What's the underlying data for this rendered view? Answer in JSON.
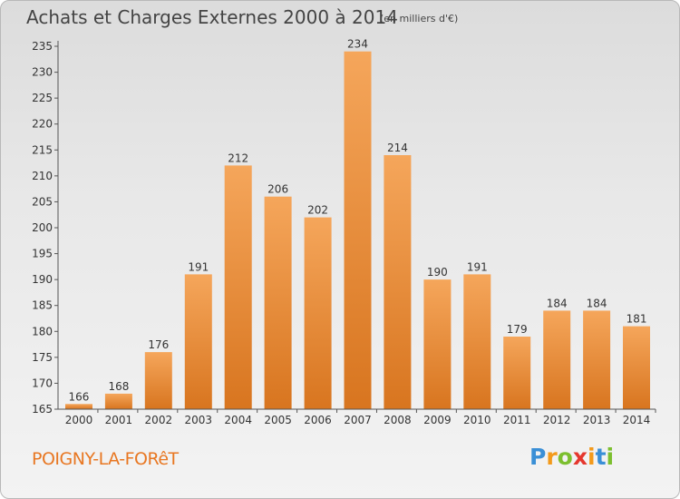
{
  "header": {
    "title": "Achats et Charges Externes 2000 à 2014",
    "unit": "(en milliers d'€)"
  },
  "footer": {
    "location": "POIGNY-LA-FORêT",
    "logo_text": "Proxiti",
    "logo_letters": [
      "P",
      "r",
      "o",
      "x",
      "i",
      "t",
      "i"
    ],
    "logo_colors": [
      "#3a8fd6",
      "#f39a1b",
      "#7cbf2f",
      "#e5372e",
      "#f39a1b",
      "#3a8fd6",
      "#7cbf2f"
    ]
  },
  "colors": {
    "bar_top": "#f5a65b",
    "bar_bottom": "#d8751f",
    "axis": "#555555",
    "text": "#333333"
  },
  "chart_data": {
    "type": "bar",
    "title": "Achats et Charges Externes 2000 à 2014",
    "subtitle": "(en milliers d'€)",
    "xlabel": "",
    "ylabel": "",
    "categories": [
      "2000",
      "2001",
      "2002",
      "2003",
      "2004",
      "2005",
      "2006",
      "2007",
      "2008",
      "2009",
      "2010",
      "2011",
      "2012",
      "2013",
      "2014"
    ],
    "values": [
      166,
      168,
      176,
      191,
      212,
      206,
      202,
      234,
      214,
      190,
      191,
      179,
      184,
      184,
      181
    ],
    "ylim": [
      165,
      235
    ],
    "yticks": [
      165,
      170,
      175,
      180,
      185,
      190,
      195,
      200,
      205,
      210,
      215,
      220,
      225,
      230,
      235
    ],
    "grid": false,
    "legend": "none"
  }
}
